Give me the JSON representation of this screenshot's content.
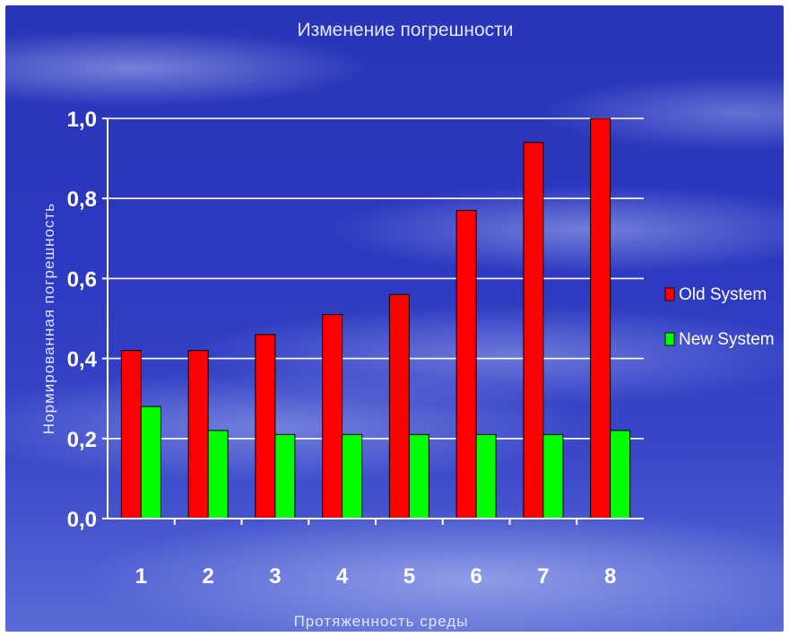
{
  "chart_data": {
    "type": "bar",
    "title": "Изменение погрешности",
    "xlabel": "Протяженность среды",
    "ylabel": "Нормированная погрешность",
    "categories": [
      "1",
      "2",
      "3",
      "4",
      "5",
      "6",
      "7",
      "8"
    ],
    "series": [
      {
        "name": "Old System",
        "values": [
          0.42,
          0.42,
          0.46,
          0.51,
          0.56,
          0.77,
          0.94,
          1.0
        ],
        "color": "#ff0000"
      },
      {
        "name": "New System",
        "values": [
          0.28,
          0.22,
          0.21,
          0.21,
          0.21,
          0.21,
          0.21,
          0.22
        ],
        "color": "#00ff00"
      }
    ],
    "ylim": [
      0,
      1.0
    ],
    "yticks": [
      "0,0",
      "0,2",
      "0,4",
      "0,6",
      "0,8",
      "1,0"
    ],
    "grid": true,
    "legend_position": "right"
  }
}
